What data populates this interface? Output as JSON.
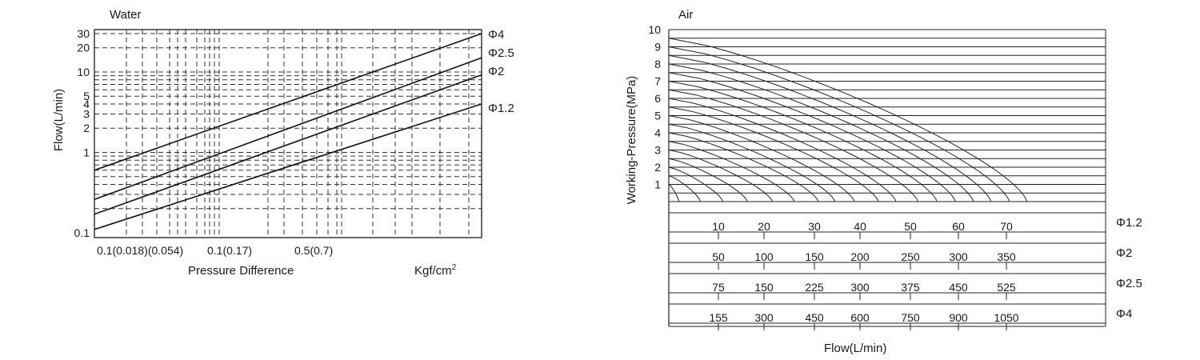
{
  "chart_data": [
    {
      "type": "line",
      "title": "Water",
      "xlabel": "Pressure Difference",
      "xunit": "Kgf/cm",
      "xunit_sup": "2",
      "ylabel": "Flow(L/min)",
      "yscale": "log",
      "xscale": "log",
      "ylim": [
        0.1,
        30
      ],
      "yticks": [
        {
          "v": 30,
          "label": "30"
        },
        {
          "v": 20,
          "label": "20"
        },
        {
          "v": 10,
          "label": "10"
        },
        {
          "v": 5,
          "label": "5"
        },
        {
          "v": 4,
          "label": "4"
        },
        {
          "v": 3,
          "label": "3"
        },
        {
          "v": 2,
          "label": "2"
        },
        {
          "v": 1,
          "label": "1"
        },
        {
          "v": 0.1,
          "label": "0.1"
        }
      ],
      "xtick_labels": [
        "0.1(0.018)(0.054)",
        "0.1(0.17)",
        "0.5(0.7)"
      ],
      "grid": "dashed",
      "series": [
        {
          "name": "Φ4",
          "points": [
            [
              0.018,
              0.6
            ],
            [
              10,
              30
            ]
          ]
        },
        {
          "name": "Φ2.5",
          "points": [
            [
              0.018,
              0.26
            ],
            [
              10,
              15
            ]
          ]
        },
        {
          "name": "Φ2",
          "points": [
            [
              0.018,
              0.17
            ],
            [
              10,
              9.2
            ]
          ]
        },
        {
          "name": "Φ1.2",
          "points": [
            [
              0.018,
              0.11
            ],
            [
              10,
              4
            ]
          ]
        }
      ]
    },
    {
      "type": "line",
      "title": "Air",
      "ylabel": "Working-Pressure(MPa)",
      "xlabel": "Flow(L/min)",
      "ylim": [
        0,
        10
      ],
      "yticks": [
        "1",
        "2",
        "3",
        "4",
        "5",
        "6",
        "7",
        "8",
        "9",
        "10"
      ],
      "xlim": [
        0,
        80
      ],
      "curve_end_flows_phi1_2": [
        2,
        6.3,
        10.8,
        15.7,
        20.7,
        25.1,
        29.9,
        33.2,
        37.1,
        41.9,
        45.4,
        49.8,
        53.6,
        57.3,
        60.9,
        64.4,
        68.1,
        71.6
      ],
      "flow_scales": [
        {
          "name": "Φ1.2",
          "labels": [
            "10",
            "20",
            "30",
            "40",
            "50",
            "60",
            "70"
          ]
        },
        {
          "name": "Φ2",
          "labels": [
            "50",
            "100",
            "150",
            "200",
            "250",
            "300",
            "350"
          ]
        },
        {
          "name": "Φ2.5",
          "labels": [
            "75",
            "150",
            "225",
            "300",
            "375",
            "450",
            "525"
          ]
        },
        {
          "name": "Φ4",
          "labels": [
            "155",
            "300",
            "450",
            "600",
            "750",
            "900",
            "1050"
          ]
        }
      ]
    }
  ]
}
